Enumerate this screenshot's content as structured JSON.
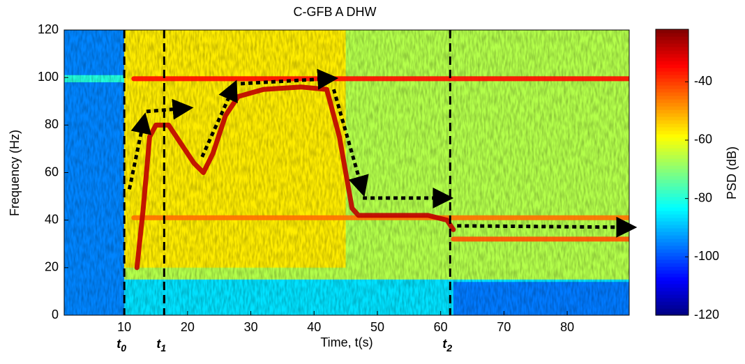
{
  "chart_data": {
    "type": "spectrogram",
    "title": "C-GFB A DHW",
    "x_label": "Time, t(s)",
    "y_label": "Frequency (Hz)",
    "colorbar_label": "PSD (dB)",
    "colormap": "jet",
    "xlim": [
      0.5,
      89.8
    ],
    "ylim": [
      0,
      120
    ],
    "xticks": [
      10,
      20,
      30,
      40,
      50,
      60,
      70,
      80
    ],
    "yticks": [
      0,
      20,
      40,
      60,
      80,
      100,
      120
    ],
    "clim": [
      -120,
      -22
    ],
    "cticks": [
      -120,
      -100,
      -80,
      -60,
      -40
    ],
    "regions": [
      {
        "x": [
          0.5,
          10
        ],
        "y": [
          0,
          120
        ],
        "psd": -95
      },
      {
        "x": [
          0.5,
          10
        ],
        "y": [
          98,
          101
        ],
        "psd": -80
      },
      {
        "x": [
          10,
          89.8
        ],
        "y": [
          15,
          120
        ],
        "psd": -66
      },
      {
        "x": [
          10,
          89.8
        ],
        "y": [
          0,
          15
        ],
        "psd": -86
      },
      {
        "x": [
          10,
          45
        ],
        "y": [
          20,
          120
        ],
        "psd": -57
      },
      {
        "x": [
          62,
          89.8
        ],
        "y": [
          0,
          14
        ],
        "psd": -96
      }
    ],
    "traces": [
      {
        "psd": -35,
        "x": [
          11.5,
          89.8
        ],
        "y": [
          99.5,
          99.5
        ]
      },
      {
        "psd": -45,
        "x": [
          11.5,
          89.8
        ],
        "y": [
          41,
          41
        ]
      },
      {
        "psd": -42,
        "x": [
          62,
          89.8
        ],
        "y": [
          32,
          32
        ]
      },
      {
        "psd": -28,
        "x": [
          12,
          13,
          14,
          15,
          17,
          19,
          21,
          22.5,
          24,
          26,
          28,
          32,
          38,
          42,
          44,
          46,
          47,
          58,
          61,
          62
        ],
        "y": [
          20,
          45,
          75,
          80,
          80,
          72,
          64,
          60,
          68,
          84,
          92,
          95,
          96,
          95,
          75,
          45,
          42,
          42,
          40,
          36
        ]
      }
    ],
    "markers": [
      {
        "x": 10,
        "label": "t",
        "subscript": "0"
      },
      {
        "x": 16.3,
        "label": "t",
        "subscript": "1"
      },
      {
        "x": 61.5,
        "label": "t",
        "subscript": "2"
      }
    ],
    "arrows": [
      {
        "x": [
          10.8,
          13
        ],
        "y": [
          53,
          81
        ]
      },
      {
        "x": [
          13.5,
          19.3
        ],
        "y": [
          85.7,
          87
        ]
      },
      {
        "x": [
          22.3,
          27.1
        ],
        "y": [
          66.6,
          95
        ]
      },
      {
        "x": [
          28.4,
          42.2
        ],
        "y": [
          97.4,
          99.5
        ]
      },
      {
        "x": [
          43.1,
          47.5
        ],
        "y": [
          95,
          54
        ]
      },
      {
        "x": [
          47.7,
          60.4
        ],
        "y": [
          49.3,
          49.3
        ]
      },
      {
        "x": [
          62.6,
          89.4
        ],
        "y": [
          37.6,
          37
        ]
      }
    ]
  }
}
